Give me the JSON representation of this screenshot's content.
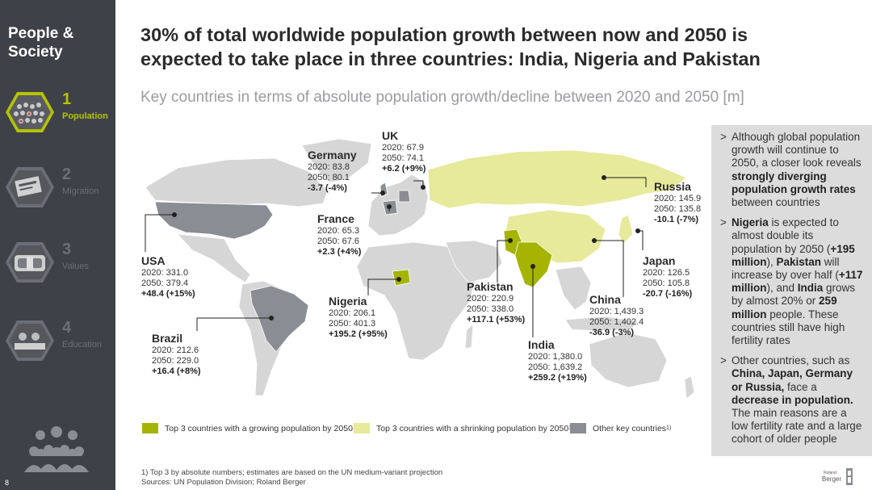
{
  "sidebar": {
    "title": "People & Society",
    "items": [
      {
        "num": "1",
        "label": "Population",
        "active": true
      },
      {
        "num": "2",
        "label": "Migration",
        "active": false
      },
      {
        "num": "3",
        "label": "Values",
        "active": false
      },
      {
        "num": "4",
        "label": "Education",
        "active": false
      }
    ],
    "page_number": "8"
  },
  "header": {
    "title": "30% of total worldwide population growth between now and 2050 is expected to take place in three countries: India, Nigeria and Pakistan",
    "subtitle": "Key countries in terms of absolute population growth/decline between 2020 and 2050 [m]"
  },
  "countries": [
    {
      "key": "uk",
      "name": "UK",
      "v2020": "2020: 67.9",
      "v2050": "2050: 74.1",
      "change": "+6.2 (+9%)",
      "group": "other"
    },
    {
      "key": "germany",
      "name": "Germany",
      "v2020": "2020: 83.8",
      "v2050": "2050: 80.1",
      "change": "-3.7 (-4%)",
      "group": "other"
    },
    {
      "key": "france",
      "name": "France",
      "v2020": "2020: 65.3",
      "v2050": "2050: 67.6",
      "change": "+2.3 (+4%)",
      "group": "other"
    },
    {
      "key": "russia",
      "name": "Russia",
      "v2020": "2020: 145.9",
      "v2050": "2050: 135.8",
      "change": "-10.1 (-7%)",
      "group": "shrinking"
    },
    {
      "key": "japan",
      "name": "Japan",
      "v2020": "2020: 126.5",
      "v2050": "2050: 105.8",
      "change": "-20.7 (-16%)",
      "group": "shrinking"
    },
    {
      "key": "usa",
      "name": "USA",
      "v2020": "2020: 331.0",
      "v2050": "2050: 379.4",
      "change": "+48.4 (+15%)",
      "group": "other"
    },
    {
      "key": "nigeria",
      "name": "Nigeria",
      "v2020": "2020: 206.1",
      "v2050": "2050: 401.3",
      "change": "+195.2 (+95%)",
      "group": "growing"
    },
    {
      "key": "pakistan",
      "name": "Pakistan",
      "v2020": "2020: 220.9",
      "v2050": "2050: 338.0",
      "change": "+117.1 (+53%)",
      "group": "growing"
    },
    {
      "key": "china",
      "name": "China",
      "v2020": "2020: 1,439.3",
      "v2050": "2050: 1,402.4",
      "change": "-36.9 (-3%)",
      "group": "shrinking"
    },
    {
      "key": "india",
      "name": "India",
      "v2020": "2020: 1,380.0",
      "v2050": "2050: 1,639.2",
      "change": "+259.2 (+19%)",
      "group": "growing"
    },
    {
      "key": "brazil",
      "name": "Brazil",
      "v2020": "2020: 212.6",
      "v2050": "2050: 229.0",
      "change": "+16.4 (+8%)",
      "group": "other"
    }
  ],
  "legend": {
    "growing": "Top 3 countries with a growing population by 2050",
    "shrinking": "Top 3 countries with a shrinking population by 2050",
    "other": "Other key countries",
    "sup": "1)"
  },
  "colors": {
    "growing": "#a5b400",
    "shrinking": "#e6ea9a",
    "other": "#8a8d93",
    "land": "#d6d6d6",
    "sidebar": "#3f4148",
    "accent": "#b5c300"
  },
  "panel": {
    "b1": {
      "t1": "Although global population growth will continue to 2050, a closer look reveals ",
      "s1": "strongly diverging population growth rates",
      "t2": " between countries"
    },
    "b2": {
      "s1": "Nigeria",
      "t1": " is expected to almost double its population by 2050 (",
      "s2": "+195 million",
      "t2": "), ",
      "s3": "Pakistan",
      "t3": " will increase by over half (",
      "s4": "+117 million",
      "t4": "), and ",
      "s5": "India",
      "t5": " grows by almost 20% or ",
      "s6": "259 million",
      "t6": " people. These countries still have high fertility rates"
    },
    "b3": {
      "t1": "Other countries, such as ",
      "s1": "China, Japan, Germany or Russia,",
      "t2": " face a ",
      "s2": "decrease in population.",
      "t3": " The main reasons are a low fertility rate and a large cohort of older people"
    }
  },
  "footnote": {
    "line1": "1) Top 3 by absolute numbers; estimates are based on the UN medium-variant projection",
    "line2": "Sources: UN Population Division; Roland Berger"
  },
  "brand": {
    "line1": "Roland",
    "line2": "Berger"
  }
}
